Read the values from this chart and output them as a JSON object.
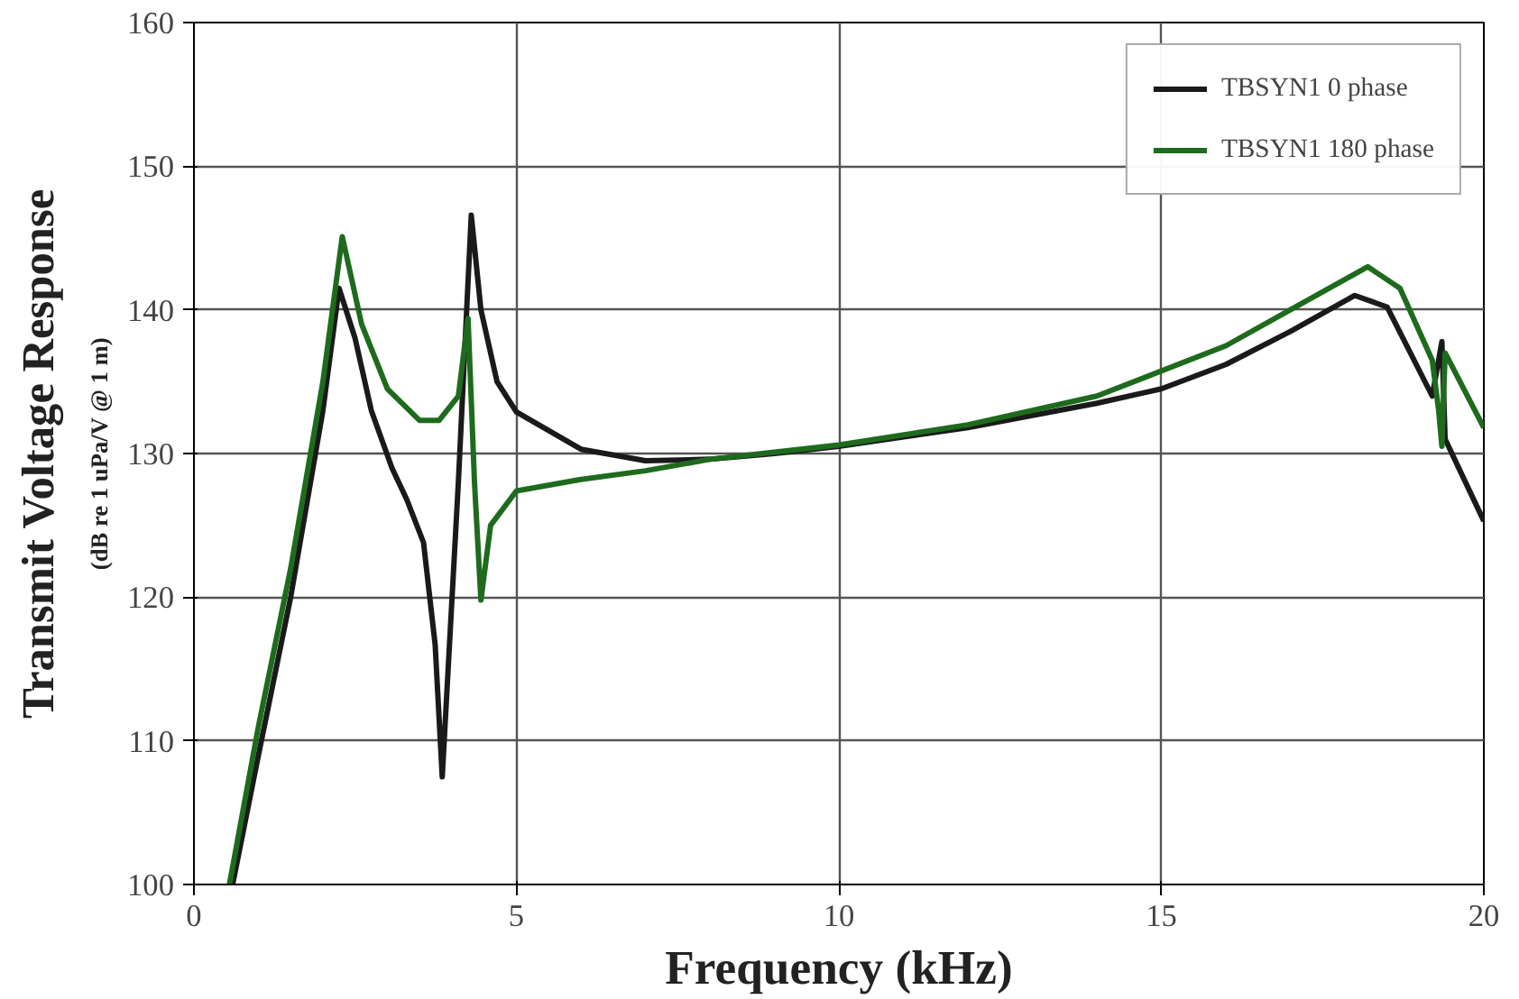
{
  "chart_data": {
    "type": "line",
    "xlabel": "Frequency (kHz)",
    "ylabel": "Transmit Voltage Response",
    "annotations": [
      "(dB re 1 uPa/V @ 1 m)"
    ],
    "xlim": [
      0,
      20
    ],
    "xticks": [
      0,
      5,
      10,
      15,
      20
    ],
    "ylim": [
      100,
      160
    ],
    "yticks": [
      100,
      110,
      120,
      130,
      140,
      150,
      160
    ],
    "grid": true,
    "legend": "top right",
    "series": [
      {
        "name": "TBSYN1 0 phase",
        "color": "#1a1a1a",
        "x": [
          0.6,
          1,
          1.5,
          2,
          2.25,
          2.5,
          2.75,
          3.07,
          3.3,
          3.56,
          3.74,
          3.85,
          4.1,
          4.3,
          4.45,
          4.7,
          5,
          6,
          7,
          8,
          9,
          10,
          12,
          14,
          15,
          16,
          17,
          18,
          18.5,
          19.2,
          19.35,
          19.4,
          20
        ],
        "values": [
          100,
          109,
          120,
          133,
          141.5,
          138,
          133,
          129,
          126.8,
          123.8,
          116.7,
          107.5,
          128,
          146.6,
          140,
          135,
          132.9,
          130.3,
          129.5,
          129.6,
          130,
          130.5,
          131.8,
          133.5,
          134.5,
          136.2,
          138.5,
          141,
          140.2,
          134,
          137.8,
          131,
          125.3
        ]
      },
      {
        "name": "TBSYN1 180 phase",
        "color": "#1e6b1e",
        "x": [
          0.55,
          1,
          1.5,
          2,
          2.3,
          2.6,
          3,
          3.5,
          3.8,
          4.1,
          4.25,
          4.35,
          4.45,
          4.6,
          5,
          6,
          7,
          8,
          9,
          10,
          12,
          14,
          16,
          17,
          18.2,
          18.7,
          19.2,
          19.3,
          19.35,
          19.4,
          20
        ],
        "values": [
          100,
          111,
          122,
          135,
          145.1,
          139,
          134.5,
          132.3,
          132.3,
          134,
          139.4,
          128,
          119.8,
          125,
          127.4,
          128.2,
          128.8,
          129.6,
          130.1,
          130.6,
          132,
          134,
          137.5,
          140,
          143,
          141.5,
          136.5,
          133,
          130.5,
          137,
          131.8
        ]
      }
    ]
  }
}
